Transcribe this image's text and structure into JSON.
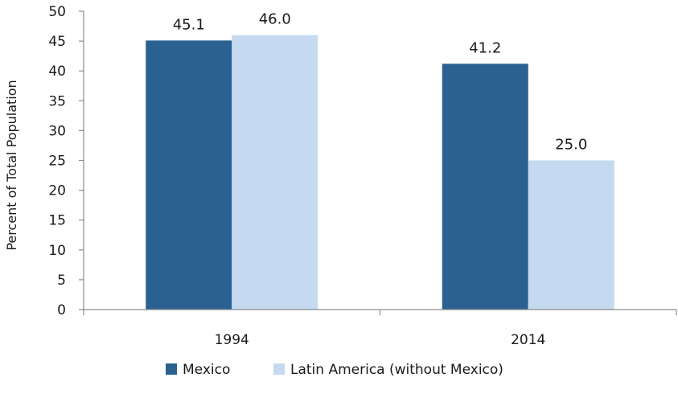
{
  "chart_data": {
    "type": "bar",
    "categories": [
      "1994",
      "2014"
    ],
    "series": [
      {
        "name": "Mexico",
        "values": [
          45.1,
          41.2
        ],
        "color": "#2a6190"
      },
      {
        "name": "Latin America (without Mexico)",
        "values": [
          46.0,
          25.0
        ],
        "color": "#c5daf0"
      }
    ],
    "data_labels": [
      [
        "45.1",
        "41.2"
      ],
      [
        "46.0",
        "25.0"
      ]
    ],
    "title": "",
    "xlabel": "",
    "ylabel": "Percent of Total Population",
    "ylim": [
      0,
      50
    ],
    "yticks": [
      0,
      5,
      10,
      15,
      20,
      25,
      30,
      35,
      40,
      45,
      50
    ],
    "grid": false,
    "legend_position": "bottom"
  }
}
